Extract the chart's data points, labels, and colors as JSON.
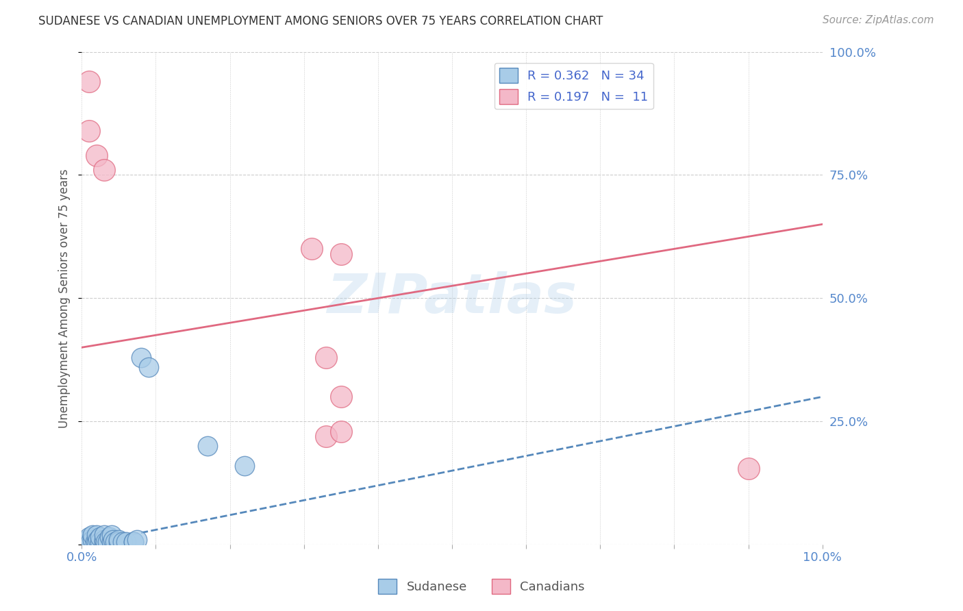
{
  "title": "SUDANESE VS CANADIAN UNEMPLOYMENT AMONG SENIORS OVER 75 YEARS CORRELATION CHART",
  "source": "Source: ZipAtlas.com",
  "ylabel": "Unemployment Among Seniors over 75 years",
  "xlim": [
    0.0,
    0.1
  ],
  "ylim": [
    0.0,
    1.0
  ],
  "sudanese_x": [
    0.0005,
    0.0008,
    0.001,
    0.001,
    0.0012,
    0.0015,
    0.0015,
    0.0018,
    0.002,
    0.002,
    0.0022,
    0.0025,
    0.0025,
    0.003,
    0.003,
    0.003,
    0.0032,
    0.0035,
    0.0038,
    0.004,
    0.004,
    0.0042,
    0.0045,
    0.005,
    0.005,
    0.0055,
    0.006,
    0.007,
    0.007,
    0.0075,
    0.008,
    0.009,
    0.017,
    0.022
  ],
  "sudanese_y": [
    0.005,
    0.01,
    0.005,
    0.015,
    0.005,
    0.01,
    0.02,
    0.005,
    0.005,
    0.02,
    0.01,
    0.005,
    0.015,
    0.005,
    0.01,
    0.02,
    0.005,
    0.005,
    0.015,
    0.005,
    0.02,
    0.01,
    0.005,
    0.005,
    0.01,
    0.005,
    0.005,
    0.005,
    0.005,
    0.01,
    0.38,
    0.36,
    0.2,
    0.16
  ],
  "canadians_x": [
    0.001,
    0.001,
    0.002,
    0.003,
    0.031,
    0.033,
    0.033,
    0.035,
    0.035,
    0.09,
    0.035
  ],
  "canadians_y": [
    0.94,
    0.84,
    0.79,
    0.76,
    0.6,
    0.38,
    0.22,
    0.3,
    0.23,
    0.155,
    0.59
  ],
  "sudanese_color": "#a8cce8",
  "canadians_color": "#f4b8c8",
  "sudanese_edge_color": "#5588bb",
  "canadians_edge_color": "#e06880",
  "sudanese_line_color": "#5588bb",
  "canadians_line_color": "#e06880",
  "trend_sudanese_x0": 0.0,
  "trend_sudanese_y0": 0.0,
  "trend_sudanese_x1": 0.1,
  "trend_sudanese_y1": 0.3,
  "trend_canadians_x0": 0.0,
  "trend_canadians_y0": 0.4,
  "trend_canadians_x1": 0.1,
  "trend_canadians_y1": 0.65,
  "R_sudanese": 0.362,
  "N_sudanese": 34,
  "R_canadians": 0.197,
  "N_canadians": 11,
  "watermark": "ZIPatlas",
  "tick_color": "#5588cc",
  "grid_color": "#cccccc",
  "background_color": "#ffffff",
  "title_color": "#333333",
  "source_color": "#999999",
  "ylabel_color": "#555555"
}
